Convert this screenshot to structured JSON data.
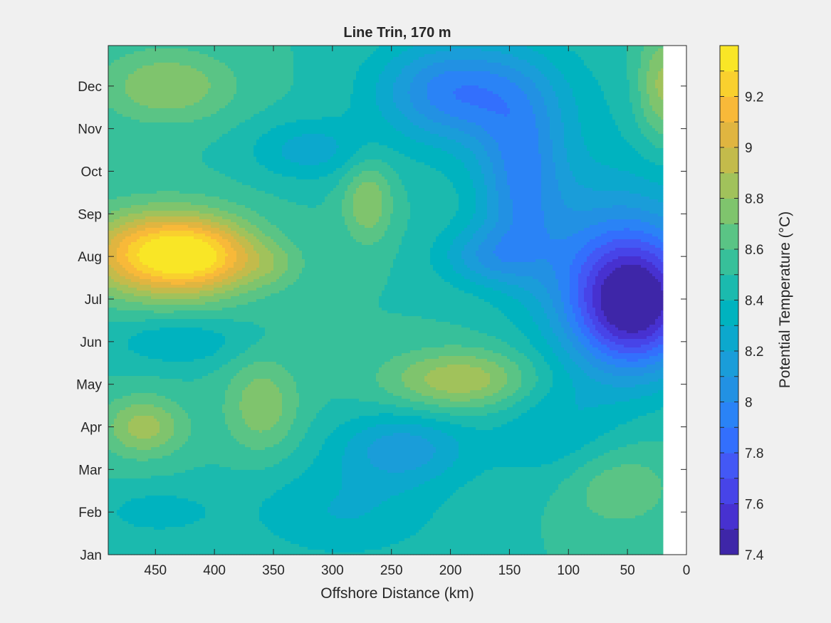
{
  "chart_data": {
    "type": "heatmap",
    "title": "Line Trin, 170 m",
    "xlabel": "Offshore Distance (km)",
    "ylabel": "",
    "xlim": [
      490,
      0
    ],
    "x_reversed": true,
    "x_ticks": [
      450,
      400,
      350,
      300,
      250,
      200,
      150,
      100,
      50,
      0
    ],
    "y_ticks": [
      {
        "label": "Jan",
        "t": 0.0
      },
      {
        "label": "Feb",
        "t": 1.0
      },
      {
        "label": "Mar",
        "t": 2.0
      },
      {
        "label": "Apr",
        "t": 3.0
      },
      {
        "label": "May",
        "t": 4.0
      },
      {
        "label": "Jun",
        "t": 5.0
      },
      {
        "label": "Jul",
        "t": 6.0
      },
      {
        "label": "Aug",
        "t": 7.0
      },
      {
        "label": "Sep",
        "t": 8.0
      },
      {
        "label": "Oct",
        "t": 9.0
      },
      {
        "label": "Nov",
        "t": 10.0
      },
      {
        "label": "Dec",
        "t": 11.0
      }
    ],
    "ylim": [
      0,
      11.95
    ],
    "data_extent_km": [
      490,
      20
    ],
    "colorbar": {
      "label": "Potential Temperature (°C)",
      "min": 7.4,
      "max": 9.4,
      "step": 0.1,
      "tick_values": [
        7.4,
        7.6,
        7.8,
        8.0,
        8.2,
        8.4,
        8.6,
        8.8,
        9.0,
        9.2
      ],
      "tick_labels": [
        "7.4",
        "7.6",
        "7.8",
        "8",
        "8.2",
        "8.4",
        "8.6",
        "8.8",
        "9",
        "9.2"
      ],
      "colormap": "parula"
    },
    "field": {
      "background": 8.5,
      "features": [
        {
          "x": 445,
          "t": 7.05,
          "amp": 0.85,
          "sx": 45,
          "st": 0.7
        },
        {
          "x": 400,
          "t": 7.0,
          "amp": 0.3,
          "sx": 30,
          "st": 0.6
        },
        {
          "x": 460,
          "t": 3.0,
          "amp": 0.35,
          "sx": 25,
          "st": 0.5
        },
        {
          "x": 440,
          "t": 11.0,
          "amp": 0.3,
          "sx": 40,
          "st": 0.6
        },
        {
          "x": 360,
          "t": 3.5,
          "amp": 0.28,
          "sx": 22,
          "st": 0.8
        },
        {
          "x": 270,
          "t": 8.3,
          "amp": 0.3,
          "sx": 15,
          "st": 0.7
        },
        {
          "x": 190,
          "t": 4.1,
          "amp": 0.4,
          "sx": 45,
          "st": 0.5
        },
        {
          "x": 60,
          "t": 1.6,
          "amp": 0.2,
          "sx": 35,
          "st": 0.7
        },
        {
          "x": 20,
          "t": 11.0,
          "amp": 0.35,
          "sx": 15,
          "st": 0.9
        },
        {
          "x": 350,
          "t": 6.8,
          "amp": 0.15,
          "sx": 20,
          "st": 0.4
        },
        {
          "x": 45,
          "t": 5.8,
          "amp": -1.05,
          "sx": 40,
          "st": 1.1
        },
        {
          "x": 60,
          "t": 7.4,
          "amp": -0.35,
          "sx": 60,
          "st": 1.3
        },
        {
          "x": 200,
          "t": 10.9,
          "amp": -0.45,
          "sx": 45,
          "st": 0.8
        },
        {
          "x": 140,
          "t": 8.8,
          "amp": -0.4,
          "sx": 25,
          "st": 1.4
        },
        {
          "x": 170,
          "t": 7.0,
          "amp": -0.3,
          "sx": 30,
          "st": 0.5
        },
        {
          "x": 240,
          "t": 2.5,
          "amp": -0.35,
          "sx": 40,
          "st": 0.6
        },
        {
          "x": 320,
          "t": 9.5,
          "amp": -0.25,
          "sx": 35,
          "st": 0.5
        },
        {
          "x": 290,
          "t": 1.0,
          "amp": -0.2,
          "sx": 60,
          "st": 0.8
        },
        {
          "x": 430,
          "t": 5.0,
          "amp": -0.2,
          "sx": 40,
          "st": 0.4
        },
        {
          "x": 450,
          "t": 1.0,
          "amp": -0.15,
          "sx": 35,
          "st": 0.4
        },
        {
          "x": 110,
          "t": 3.0,
          "amp": -0.2,
          "sx": 40,
          "st": 1.0
        },
        {
          "x": 150,
          "t": 10.5,
          "amp": -0.2,
          "sx": 60,
          "st": 1.2
        }
      ]
    }
  }
}
